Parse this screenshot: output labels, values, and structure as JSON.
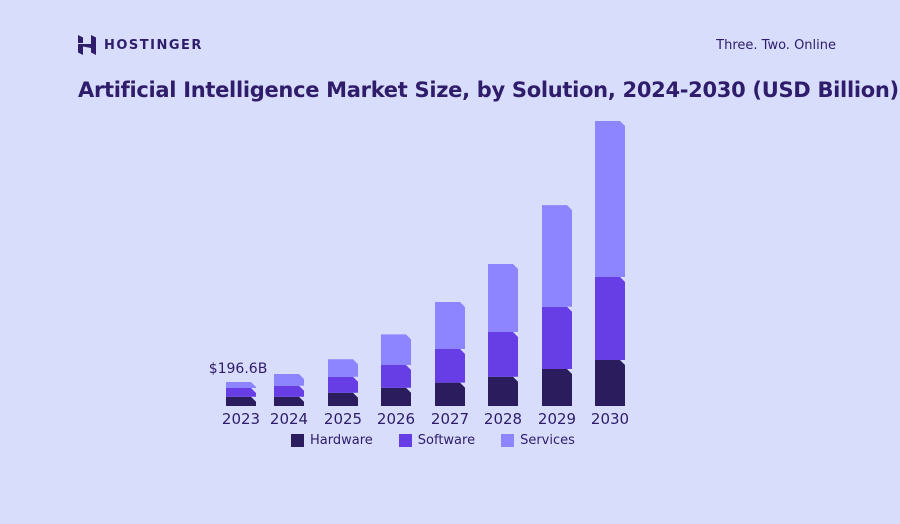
{
  "brand": {
    "name": "HOSTINGER",
    "tagline": "Three. Two. Online"
  },
  "colors": {
    "background": "#d7ddfb",
    "hardware": "#2b1c5e",
    "software": "#673de6",
    "services": "#8c85ff",
    "text": "#2f1c6a"
  },
  "chart_data": {
    "type": "bar",
    "stacked": true,
    "title": "Artificial Intelligence Market Size, by Solution, 2024-2030 (USD Billion)",
    "categories": [
      "2023",
      "2024",
      "2025",
      "2026",
      "2027",
      "2028",
      "2029",
      "2030"
    ],
    "series": [
      {
        "name": "Hardware",
        "values": [
          76.2,
          76,
          109,
          150,
          191,
          240,
          303,
          377
        ]
      },
      {
        "name": "Software",
        "values": [
          71.3,
          90,
          131,
          186,
          276,
          366,
          510,
          680
        ]
      },
      {
        "name": "Services",
        "values": [
          49.1,
          96,
          143,
          251,
          385,
          557,
          833,
          1278
        ]
      }
    ],
    "annotations": [
      {
        "category": "2023",
        "text": "$196.6B"
      }
    ],
    "legend": "bottom",
    "grid": false,
    "y_axis_shown": false
  }
}
